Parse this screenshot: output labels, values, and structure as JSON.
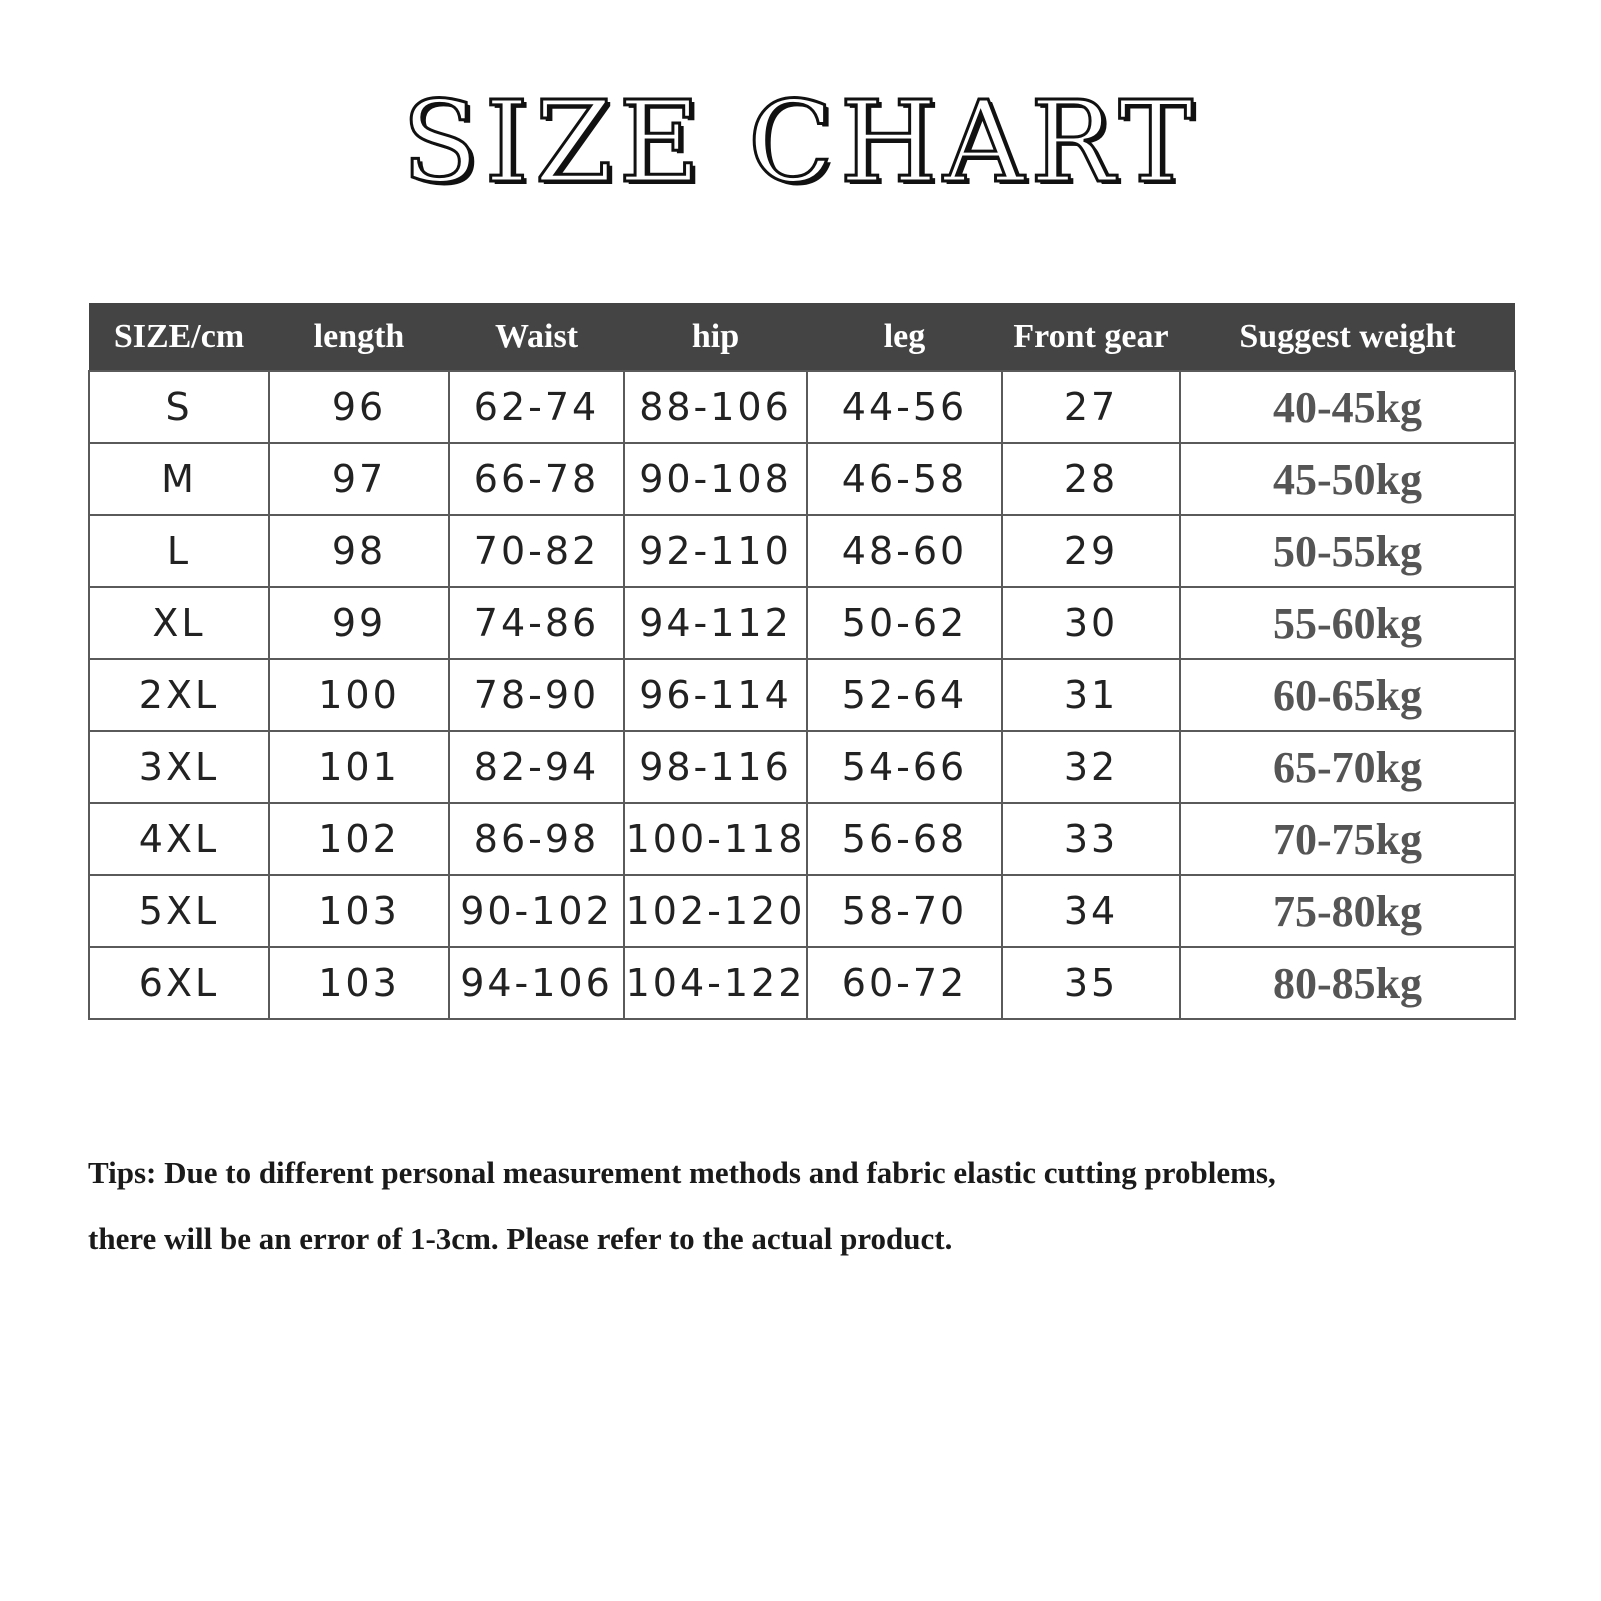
{
  "title": "SIZE CHART",
  "table": {
    "headers": [
      "SIZE/cm",
      "length",
      "Waist",
      "hip",
      "leg",
      "Front gear",
      "Suggest weight"
    ],
    "rows": [
      [
        "S",
        "96",
        "62-74",
        "88-106",
        "44-56",
        "27",
        "40-45kg"
      ],
      [
        "M",
        "97",
        "66-78",
        "90-108",
        "46-58",
        "28",
        "45-50kg"
      ],
      [
        "L",
        "98",
        "70-82",
        "92-110",
        "48-60",
        "29",
        "50-55kg"
      ],
      [
        "XL",
        "99",
        "74-86",
        "94-112",
        "50-62",
        "30",
        "55-60kg"
      ],
      [
        "2XL",
        "100",
        "78-90",
        "96-114",
        "52-64",
        "31",
        "60-65kg"
      ],
      [
        "3XL",
        "101",
        "82-94",
        "98-116",
        "54-66",
        "32",
        "65-70kg"
      ],
      [
        "4XL",
        "102",
        "86-98",
        "100-118",
        "56-68",
        "33",
        "70-75kg"
      ],
      [
        "5XL",
        "103",
        "90-102",
        "102-120",
        "58-70",
        "34",
        "75-80kg"
      ],
      [
        "6XL",
        "103",
        "94-106",
        "104-122",
        "60-72",
        "35",
        "80-85kg"
      ]
    ]
  },
  "tips": {
    "line1": "Tips: Due to different personal measurement methods and fabric elastic cutting problems,",
    "line2": "there will be an error of 1-3cm. Please refer to the actual product."
  },
  "colors": {
    "header_bg": "#444444",
    "header_text": "#ffffff",
    "grid": "#5a5a5a",
    "weight_text": "#555555"
  }
}
